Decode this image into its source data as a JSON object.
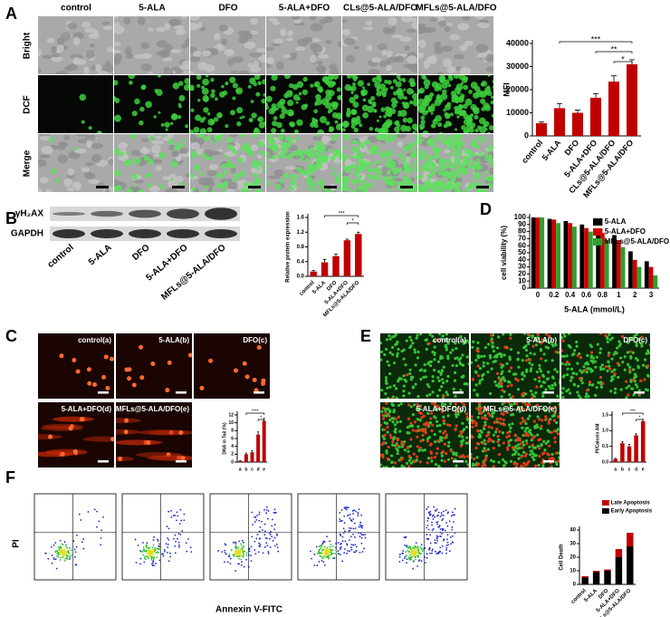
{
  "panel_labels": [
    "A",
    "B",
    "C",
    "D",
    "E",
    "F"
  ],
  "panel_a": {
    "columns": [
      "control",
      "5-ALA",
      "DFO",
      "5-ALA+DFO",
      "CLs@5-ALA/DFO",
      "MFLs@5-ALA/DFO"
    ],
    "rows": [
      "Bright",
      "DCF",
      "Merge"
    ]
  },
  "panel_b": {
    "blot_rows": [
      "γH₂AX",
      "GAPDH"
    ],
    "lanes": [
      "control",
      "5-ALA",
      "DFO",
      "5-ALA+DFO",
      "MFLs@5-ALA/DFO"
    ]
  },
  "panel_c": {
    "images": [
      "control(a)",
      "5-ALA(b)",
      "DFO(c)",
      "5-ALA+DFO(d)",
      "MFLs@5-ALA/DFO(e)"
    ]
  },
  "panel_e": {
    "images": [
      "control(a)",
      "5-ALA(b)",
      "DFO(c)",
      "5-ALA+DFO(d)",
      "MFLs@5-ALA/DFO(e)"
    ]
  },
  "panel_f": {
    "ylabel": "PI",
    "xlabel": "Annexin V-FITC"
  },
  "chart_data": [
    {
      "type": "bar",
      "ylabel": "MFI",
      "categories": [
        "control",
        "5-ALA",
        "DFO",
        "5-ALA+DFO",
        "CLs@5-ALA/DFO",
        "MFLs@5-ALA/DFO"
      ],
      "values": [
        5500,
        12000,
        10000,
        16500,
        23500,
        31000
      ],
      "errors": [
        500,
        2000,
        1200,
        1800,
        2500,
        2000
      ],
      "color": "#c00000",
      "ylim": [
        0,
        40000
      ],
      "yticks": [
        0,
        10000,
        20000,
        30000,
        40000
      ],
      "annotations": [
        "***",
        "**",
        "*"
      ]
    },
    {
      "type": "bar",
      "ylabel": "Relative protein expression",
      "categories": [
        "control",
        "5-ALA",
        "DFO",
        "5-ALA+DFO",
        "MFLs@5-ALA/DFO"
      ],
      "values": [
        0.13,
        0.38,
        0.55,
        0.98,
        1.15
      ],
      "errors": [
        0.03,
        0.08,
        0.06,
        0.03,
        0.05
      ],
      "color": "#c00000",
      "ylim": [
        0,
        1.6
      ],
      "yticks": [
        {
          "value": 0,
          "label": "0.0"
        },
        0.4,
        0.8,
        1.2,
        1.6
      ],
      "annotations": [
        "***",
        "*"
      ]
    },
    {
      "type": "grouped_bar",
      "ylabel": "cell viability (%)",
      "xlabel": "5-ALA (mmol/L)",
      "categories": [
        "0",
        "0.2",
        "0.4",
        "0.6",
        "0.8",
        "1",
        "2",
        "3"
      ],
      "series": [
        {
          "name": "5-ALA",
          "color": "#000000",
          "values": [
            100,
            98,
            95,
            90,
            84,
            75,
            52,
            38
          ]
        },
        {
          "name": "5-ALA+DFO",
          "color": "#d00000",
          "values": [
            100,
            97,
            92,
            85,
            78,
            68,
            40,
            30
          ]
        },
        {
          "name": "MFLs@5-ALA/DFO",
          "color": "#2ca02c",
          "values": [
            100,
            92,
            87,
            80,
            68,
            58,
            30,
            18
          ]
        }
      ],
      "ylim": [
        0,
        100
      ],
      "yticks": [
        0,
        10,
        20,
        30,
        40,
        50,
        60,
        70,
        80,
        90,
        100
      ]
    },
    {
      "type": "bar",
      "ylabel": "DNA in Tail (%)",
      "categories": [
        "a",
        "b",
        "c",
        "d",
        "e"
      ],
      "values": [
        0.3,
        2,
        2.5,
        7,
        10.5
      ],
      "errors": [
        0.1,
        0.3,
        0.4,
        0.7,
        0.6
      ],
      "color": "#c00000",
      "ylim": [
        0,
        12
      ],
      "yticks": [
        0,
        2,
        4,
        6,
        8,
        10,
        12
      ],
      "annotations": [
        "****",
        "*"
      ]
    },
    {
      "type": "bar",
      "ylabel": "PI/Calcein AM",
      "categories": [
        "a",
        "b",
        "c",
        "d",
        "e"
      ],
      "values": [
        0.1,
        0.6,
        0.5,
        0.85,
        1.3
      ],
      "errors": [
        0.02,
        0.05,
        0.06,
        0.05,
        0.06
      ],
      "color": "#c00000",
      "ylim": [
        0,
        1.5
      ],
      "yticks": [
        {
          "value": 0,
          "label": "0.0"
        },
        0.5,
        {
          "value": 1,
          "label": "1.0"
        },
        1.5
      ],
      "annotations": [
        "***",
        "*"
      ]
    },
    {
      "type": "stacked_bar",
      "ylabel": "Cell Death",
      "categories": [
        "control",
        "5-ALA",
        "DFO",
        "5-ALA+DFO",
        "MFLs@5-ALA/DFO"
      ],
      "series": [
        {
          "name": "Early Apoptosis",
          "color": "#000000",
          "values": [
            5,
            9,
            10,
            20,
            28
          ]
        },
        {
          "name": "Late Apoptosis",
          "color": "#c00000",
          "values": [
            1,
            1,
            1,
            6,
            10
          ]
        }
      ],
      "ylim": [
        0,
        40
      ],
      "yticks": [
        0,
        10,
        20,
        30,
        40
      ]
    }
  ]
}
